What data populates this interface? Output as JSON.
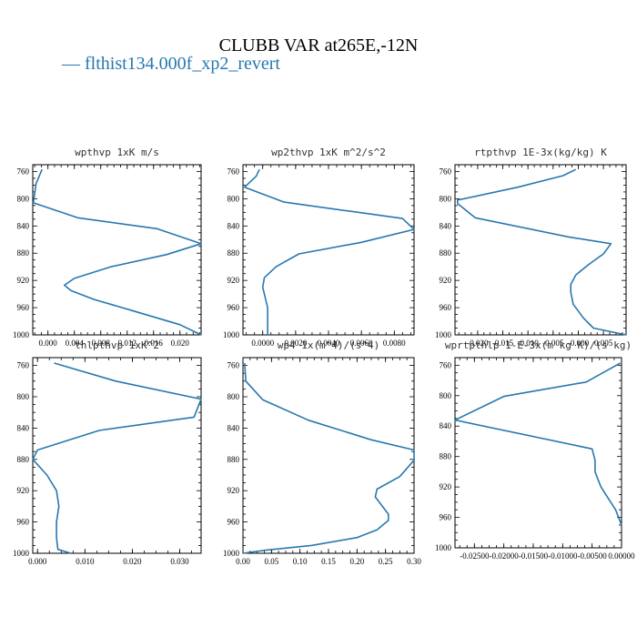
{
  "title": "CLUBB VAR at265E,-12N",
  "legend": {
    "label": "flthist134.000f_xp2_revert",
    "color": "#2778b0"
  },
  "chart_data": [
    {
      "type": "line",
      "title": "wpthvp  1xK m/s",
      "ylim": [
        1000,
        750
      ],
      "y_ticks": [
        "760",
        "800",
        "840",
        "880",
        "920",
        "960",
        "1000"
      ],
      "xlim": [
        -0.0023,
        0.0232
      ],
      "x_ticks": [
        {
          "v": 0.0,
          "label": "0.000"
        },
        {
          "v": 0.004,
          "label": "0.004"
        },
        {
          "v": 0.008,
          "label": "0.008"
        },
        {
          "v": 0.012,
          "label": "0.012"
        },
        {
          "v": 0.016,
          "label": "0.016"
        },
        {
          "v": 0.02,
          "label": "0.020"
        }
      ],
      "series": [
        {
          "x": [
            -0.0009,
            -0.0018,
            -0.0022,
            0.0045,
            0.0165,
            0.0232,
            0.018,
            0.0095,
            0.004,
            0.0025,
            0.0035,
            0.007,
            0.013,
            0.02,
            0.0232
          ],
          "y": [
            757,
            778,
            806,
            828,
            844,
            866,
            882,
            900,
            917,
            927,
            935,
            948,
            965,
            985,
            1000
          ]
        }
      ]
    },
    {
      "type": "line",
      "title": "wp2thvp  1xK m^2/s^2",
      "ylim": [
        1000,
        750
      ],
      "y_ticks": [
        "760",
        "800",
        "840",
        "880",
        "920",
        "960",
        "1000"
      ],
      "xlim": [
        -0.0012,
        0.0092
      ],
      "x_ticks": [
        {
          "v": 0.0,
          "label": "0.0000"
        },
        {
          "v": 0.002,
          "label": "0.0020"
        },
        {
          "v": 0.004,
          "label": "0.0040"
        },
        {
          "v": 0.006,
          "label": "0.0060"
        },
        {
          "v": 0.008,
          "label": "0.0080"
        }
      ],
      "series": [
        {
          "x": [
            -0.0002,
            -0.0004,
            -0.0011,
            0.0013,
            0.0085,
            0.0092,
            0.006,
            0.0022,
            0.0008,
            0.0001,
            0.0,
            0.0003,
            0.0003
          ],
          "y": [
            757,
            767,
            783,
            805,
            829,
            845,
            864,
            881,
            900,
            916,
            930,
            960,
            1000
          ]
        }
      ]
    },
    {
      "type": "line",
      "title": "rtpthvp  1E-3x(kg/kg) K",
      "ylim": [
        1000,
        750
      ],
      "y_ticks": [
        "760",
        "800",
        "840",
        "880",
        "920",
        "960",
        "1000"
      ],
      "xlim": [
        -0.0245,
        0.0095
      ],
      "x_ticks": [
        {
          "v": -0.02,
          "label": "-0.020"
        },
        {
          "v": -0.015,
          "label": "-0.015"
        },
        {
          "v": -0.01,
          "label": "-0.010"
        },
        {
          "v": -0.005,
          "label": "-0.005"
        },
        {
          "v": 0.0,
          "label": "-0.000"
        },
        {
          "v": 0.005,
          "label": "0.005"
        }
      ],
      "series": [
        {
          "x": [
            -0.0005,
            -0.003,
            -0.012,
            -0.024,
            -0.024,
            -0.0205,
            -0.002,
            0.0065,
            0.005,
            0.002,
            -0.0005,
            -0.0015,
            -0.0015,
            -0.001,
            0.001,
            0.003,
            0.0095
          ],
          "y": [
            757,
            766,
            783,
            802,
            807,
            828,
            856,
            866,
            881,
            897,
            912,
            926,
            937,
            955,
            975,
            990,
            1000
          ]
        }
      ]
    },
    {
      "type": "line",
      "title": "thlpthvp  1xK^2",
      "ylim": [
        1000,
        750
      ],
      "y_ticks": [
        "760",
        "800",
        "840",
        "880",
        "920",
        "960",
        "1000"
      ],
      "xlim": [
        -0.001,
        0.0345
      ],
      "x_ticks": [
        {
          "v": 0.0,
          "label": "0.000"
        },
        {
          "v": 0.01,
          "label": "0.010"
        },
        {
          "v": 0.02,
          "label": "0.020"
        },
        {
          "v": 0.03,
          "label": "0.030"
        }
      ],
      "series": [
        {
          "x": [
            0.0035,
            0.0165,
            0.0345,
            0.033,
            0.013,
            0.0,
            -0.001,
            0.002,
            0.004,
            0.0045,
            0.004,
            0.004,
            0.0043,
            0.007
          ],
          "y": [
            757,
            780,
            803,
            826,
            843,
            868,
            880,
            900,
            920,
            940,
            960,
            980,
            995,
            1000
          ]
        }
      ]
    },
    {
      "type": "line",
      "title": "wp4  1x(m^4)/(s^4)",
      "ylim": [
        1000,
        750
      ],
      "y_ticks": [
        "760",
        "800",
        "840",
        "880",
        "920",
        "960",
        "1000"
      ],
      "xlim": [
        0.0,
        0.3
      ],
      "x_ticks": [
        {
          "v": 0.0,
          "label": "0.00"
        },
        {
          "v": 0.05,
          "label": "0.05"
        },
        {
          "v": 0.1,
          "label": "0.10"
        },
        {
          "v": 0.15,
          "label": "0.15"
        },
        {
          "v": 0.2,
          "label": "0.20"
        },
        {
          "v": 0.25,
          "label": "0.25"
        },
        {
          "v": 0.3,
          "label": "0.30"
        }
      ],
      "series": [
        {
          "x": [
            0.003,
            0.005,
            0.035,
            0.115,
            0.225,
            0.3,
            0.3,
            0.275,
            0.235,
            0.232,
            0.255,
            0.255,
            0.235,
            0.2,
            0.12,
            0.04,
            0.0
          ],
          "y": [
            757,
            780,
            804,
            830,
            855,
            868,
            881,
            902,
            918,
            928,
            950,
            958,
            970,
            980,
            990,
            996,
            1000
          ]
        }
      ]
    },
    {
      "type": "line",
      "title": "wprtpthlp  1-E-3x(m kg K)/(s kg)",
      "ylim": [
        1000,
        750
      ],
      "y_ticks": [
        "760",
        "800",
        "840",
        "880",
        "920",
        "960",
        "1000"
      ],
      "xlim": [
        -0.0283,
        0.0
      ],
      "x_ticks": [
        {
          "v": -0.025,
          "label": "-0.02500"
        },
        {
          "v": -0.02,
          "label": "-0.02000"
        },
        {
          "v": -0.015,
          "label": "-0.01500"
        },
        {
          "v": -0.01,
          "label": "-0.01000"
        },
        {
          "v": -0.005,
          "label": "-0.00500"
        },
        {
          "v": 0.0,
          "label": "0.00000"
        }
      ],
      "series": [
        {
          "x": [
            -0.0002,
            -0.006,
            -0.02,
            -0.0283,
            -0.005,
            -0.0045,
            -0.0045,
            -0.004,
            -0.0035,
            -0.0025,
            -0.001,
            0.0
          ],
          "y": [
            757,
            782,
            801,
            832,
            870,
            885,
            900,
            910,
            920,
            932,
            950,
            970
          ]
        }
      ]
    }
  ]
}
